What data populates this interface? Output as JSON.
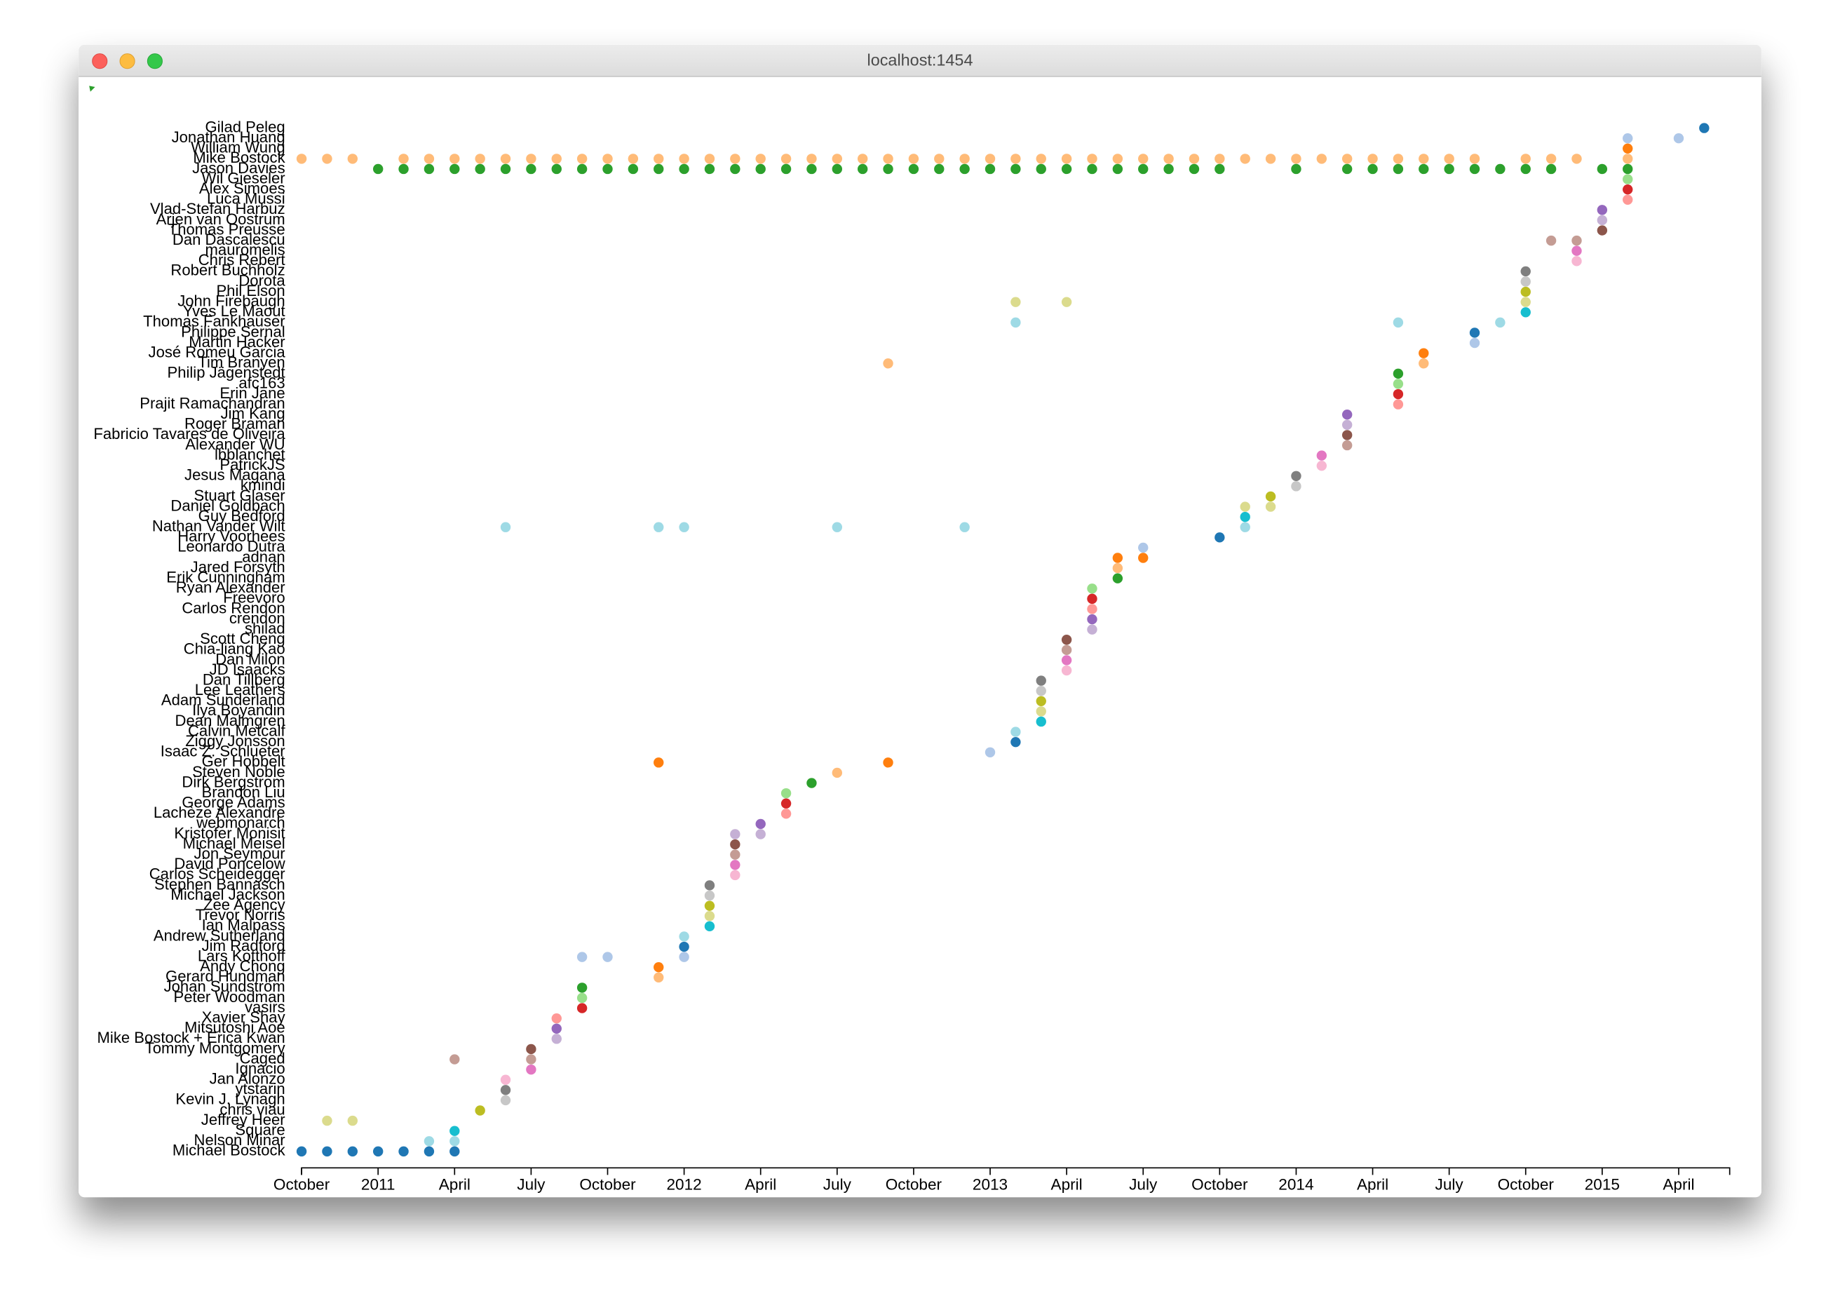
{
  "window": {
    "title": "localhost:1454"
  },
  "chart_data": {
    "type": "scatter",
    "palette": [
      "#1f77b4",
      "#aec7e8",
      "#ff7f0e",
      "#ffbb78",
      "#2ca02c",
      "#98df8a",
      "#d62728",
      "#ff9896",
      "#9467bd",
      "#c5b0d5",
      "#8c564b",
      "#c49c94",
      "#e377c2",
      "#f7b6d2",
      "#7f7f7f",
      "#c7c7c7",
      "#bcbd22",
      "#dbdb8d",
      "#17becf",
      "#9edae5"
    ],
    "categories": [
      "Gilad Peleg",
      "Jonathan Huang",
      "William Wung",
      "Mike Bostock",
      "Jason Davies",
      "Wil Gieseler",
      "Alex Simoes",
      "Luca Mussi",
      "Vlad-Stefan Harbuz",
      "Arjen van Oostrum",
      "Thomas Preusse",
      "Dan Dascalescu",
      "mauromelis",
      "Chris Rebert",
      "Robert Buchholz",
      "Dorota",
      "Phil Elson",
      "John Firebaugh",
      "Yves Le Maout",
      "Thomas Fankhauser",
      "Philippe Sernal",
      "Martin Hacker",
      "José Romeu Garcia",
      "Tim Branyen",
      "Philip Jägenstedt",
      "afc163",
      "Erin Jane",
      "Prajit Ramachandran",
      "Jim Kang",
      "Roger Braman",
      "Fabricio Tavares de Oliveira",
      "Alexander WU",
      "lbblanchet",
      "PatrickJS",
      "Jesus Magana",
      "kmindi",
      "Stuart Glaser",
      "Daniel Goldbach",
      "Guy Bedford",
      "Nathan Vander Wilt",
      "Harry Voorhees",
      "Leonardo Dutra",
      "adnan",
      "Jared Forsyth",
      "Erik Cunningham",
      "Ryan Alexander",
      "Freevoro",
      "Carlos Rendon",
      "crendon",
      "shilad",
      "Scott Cheng",
      "Chia-liang Kao",
      "Dan Milon",
      "JD Isaacks",
      "Dan Tillberg",
      "Lee Leathers",
      "Adam Sunderland",
      "Ilya Boyandin",
      "Dean Malmgren",
      "Calvin Metcalf",
      "Ziggy Jonsson",
      "Isaac Z. Schlueter",
      "Ger Hobbelt",
      "Steven Noble",
      "Dirk Bergstrom",
      "Brandon Liu",
      "George Adams",
      "Lachèze Alexandre",
      "webmonarch",
      "Kristofer Monisit",
      "Michael Meisel",
      "Jon Seymour",
      "David Poncelow",
      "Carlos Scheidegger",
      "Stephen Bannasch",
      "Michael Jackson",
      "Zee Agency",
      "Trevor Norris",
      "Ian Malpass",
      "Andrew Sutherland",
      "Jim Radford",
      "Lars Kotthoff",
      "Andy Chong",
      "Gerard Hundman",
      "Johan Sundström",
      "Peter Woodman",
      "vasirs",
      "Xavier Shay",
      "Mitsutoshi Aoe",
      "Mike Bostock + Erica Kwan",
      "Tommy Montgomery",
      "Caged",
      "Ignacio",
      "Jan Alonzo",
      "ytstarin",
      "Kevin J. Lynagh",
      "chris viau",
      "Jeffrey Heer",
      "Square",
      "Nelson Minar",
      "Michael Bostock"
    ],
    "x": [
      [
        "2015-05"
      ],
      [
        "2015-02",
        "2015-04"
      ],
      [
        "2015-02"
      ],
      [
        "2010-10",
        "2010-11",
        "2010-12",
        "2011-02",
        "2011-03",
        "2011-04",
        "2011-05",
        "2011-06",
        "2011-07",
        "2011-08",
        "2011-09",
        "2011-10",
        "2011-11",
        "2011-12",
        "2012-01",
        "2012-02",
        "2012-03",
        "2012-04",
        "2012-05",
        "2012-06",
        "2012-07",
        "2012-08",
        "2012-09",
        "2012-10",
        "2012-11",
        "2012-12",
        "2013-01",
        "2013-02",
        "2013-03",
        "2013-04",
        "2013-05",
        "2013-06",
        "2013-07",
        "2013-08",
        "2013-09",
        "2013-10",
        "2013-11",
        "2013-12",
        "2014-01",
        "2014-02",
        "2014-03",
        "2014-04",
        "2014-05",
        "2014-06",
        "2014-07",
        "2014-08",
        "2014-10",
        "2014-11",
        "2014-12",
        "2015-02"
      ],
      [
        "2011-01",
        "2011-02",
        "2011-03",
        "2011-04",
        "2011-05",
        "2011-06",
        "2011-07",
        "2011-08",
        "2011-09",
        "2011-10",
        "2011-11",
        "2011-12",
        "2012-01",
        "2012-02",
        "2012-03",
        "2012-04",
        "2012-05",
        "2012-06",
        "2012-07",
        "2012-08",
        "2012-09",
        "2012-10",
        "2012-11",
        "2012-12",
        "2013-01",
        "2013-02",
        "2013-03",
        "2013-04",
        "2013-05",
        "2013-06",
        "2013-07",
        "2013-08",
        "2013-09",
        "2013-10",
        "2014-01",
        "2014-03",
        "2014-04",
        "2014-05",
        "2014-06",
        "2014-07",
        "2014-08",
        "2014-09",
        "2014-10",
        "2014-11",
        "2015-01",
        "2015-02"
      ],
      [
        "2015-02"
      ],
      [
        "2015-02"
      ],
      [
        "2015-02"
      ],
      [
        "2015-01"
      ],
      [
        "2015-01"
      ],
      [
        "2015-01"
      ],
      [
        "2014-11",
        "2014-12"
      ],
      [
        "2014-12"
      ],
      [
        "2014-12"
      ],
      [
        "2014-10"
      ],
      [
        "2014-10"
      ],
      [
        "2014-10"
      ],
      [
        "2013-02",
        "2013-04",
        "2014-10"
      ],
      [
        "2014-10"
      ],
      [
        "2013-02",
        "2014-05",
        "2014-09"
      ],
      [
        "2014-08"
      ],
      [
        "2014-08"
      ],
      [
        "2014-06"
      ],
      [
        "2012-09",
        "2014-06"
      ],
      [
        "2014-05"
      ],
      [
        "2014-05"
      ],
      [
        "2014-05"
      ],
      [
        "2014-05"
      ],
      [
        "2014-03"
      ],
      [
        "2014-03"
      ],
      [
        "2014-03"
      ],
      [
        "2014-03"
      ],
      [
        "2014-02"
      ],
      [
        "2014-02"
      ],
      [
        "2014-01"
      ],
      [
        "2014-01"
      ],
      [
        "2013-12"
      ],
      [
        "2013-11",
        "2013-12"
      ],
      [
        "2013-11"
      ],
      [
        "2011-06",
        "2011-12",
        "2012-01",
        "2012-07",
        "2012-12",
        "2013-11"
      ],
      [
        "2013-10"
      ],
      [
        "2013-07"
      ],
      [
        "2013-06",
        "2013-07"
      ],
      [
        "2013-06"
      ],
      [
        "2013-06"
      ],
      [
        "2013-05"
      ],
      [
        "2013-05"
      ],
      [
        "2013-05"
      ],
      [
        "2013-05"
      ],
      [
        "2013-05"
      ],
      [
        "2013-04"
      ],
      [
        "2013-04"
      ],
      [
        "2013-04"
      ],
      [
        "2013-04"
      ],
      [
        "2013-03"
      ],
      [
        "2013-03"
      ],
      [
        "2013-03"
      ],
      [
        "2013-03"
      ],
      [
        "2013-03"
      ],
      [
        "2013-02"
      ],
      [
        "2013-02"
      ],
      [
        "2013-01"
      ],
      [
        "2011-12",
        "2012-09"
      ],
      [
        "2012-07"
      ],
      [
        "2012-06"
      ],
      [
        "2012-05"
      ],
      [
        "2012-05"
      ],
      [
        "2012-05"
      ],
      [
        "2012-04"
      ],
      [
        "2012-03",
        "2012-04"
      ],
      [
        "2012-03"
      ],
      [
        "2012-03"
      ],
      [
        "2012-03"
      ],
      [
        "2012-03"
      ],
      [
        "2012-02"
      ],
      [
        "2012-02"
      ],
      [
        "2012-02"
      ],
      [
        "2012-02"
      ],
      [
        "2012-02"
      ],
      [
        "2012-01"
      ],
      [
        "2012-01"
      ],
      [
        "2011-09",
        "2011-10",
        "2012-01"
      ],
      [
        "2011-12"
      ],
      [
        "2011-12"
      ],
      [
        "2011-09"
      ],
      [
        "2011-09"
      ],
      [
        "2011-09"
      ],
      [
        "2011-08"
      ],
      [
        "2011-08"
      ],
      [
        "2011-08"
      ],
      [
        "2011-07"
      ],
      [
        "2011-04",
        "2011-07"
      ],
      [
        "2011-07"
      ],
      [
        "2011-06"
      ],
      [
        "2011-06"
      ],
      [
        "2011-06"
      ],
      [
        "2011-05"
      ],
      [
        "2010-11",
        "2010-12"
      ],
      [
        "2011-04"
      ],
      [
        "2011-03",
        "2011-04"
      ],
      [
        "2010-10",
        "2010-11",
        "2010-12",
        "2011-01",
        "2011-02",
        "2011-03",
        "2011-04"
      ]
    ],
    "xlim": [
      "2010-10",
      "2015-06"
    ],
    "xticks": [
      {
        "value": "2010-10",
        "label": "October"
      },
      {
        "value": "2011-01",
        "label": "2011"
      },
      {
        "value": "2011-04",
        "label": "April"
      },
      {
        "value": "2011-07",
        "label": "July"
      },
      {
        "value": "2011-10",
        "label": "October"
      },
      {
        "value": "2012-01",
        "label": "2012"
      },
      {
        "value": "2012-04",
        "label": "April"
      },
      {
        "value": "2012-07",
        "label": "July"
      },
      {
        "value": "2012-10",
        "label": "October"
      },
      {
        "value": "2013-01",
        "label": "2013"
      },
      {
        "value": "2013-04",
        "label": "April"
      },
      {
        "value": "2013-07",
        "label": "July"
      },
      {
        "value": "2013-10",
        "label": "October"
      },
      {
        "value": "2014-01",
        "label": "2014"
      },
      {
        "value": "2014-04",
        "label": "April"
      },
      {
        "value": "2014-07",
        "label": "July"
      },
      {
        "value": "2014-10",
        "label": "October"
      },
      {
        "value": "2015-01",
        "label": "2015"
      },
      {
        "value": "2015-04",
        "label": "April"
      }
    ]
  }
}
